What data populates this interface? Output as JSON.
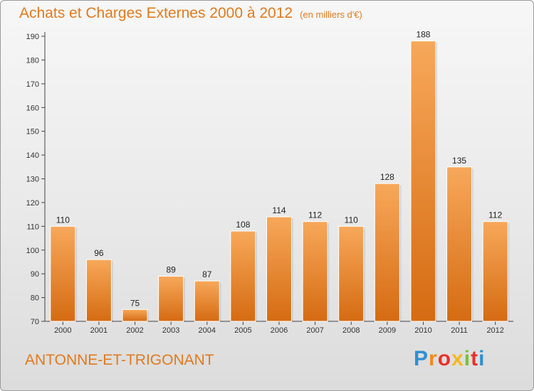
{
  "title": "Achats et Charges Externes 2000 à 2012",
  "subtitle": "(en milliers d'€)",
  "location": "ANTONNE-ET-TRIGONANT",
  "logo": [
    "P",
    "r",
    "o",
    "x",
    "i",
    "t",
    "i"
  ],
  "colors": {
    "bar_top": "#f7a85a",
    "bar_bottom": "#d56b12",
    "accent": "#e07a1e",
    "logo": [
      "#2e8fd3",
      "#f28a1c",
      "#e8312c",
      "#f5b81c",
      "#7bbf3a",
      "#e8312c",
      "#2e8fd3"
    ]
  },
  "chart_data": {
    "type": "bar",
    "categories": [
      "2000",
      "2001",
      "2002",
      "2003",
      "2004",
      "2005",
      "2006",
      "2007",
      "2008",
      "2009",
      "2010",
      "2011",
      "2012"
    ],
    "values": [
      110,
      96,
      75,
      89,
      87,
      108,
      114,
      112,
      110,
      128,
      188,
      135,
      112
    ],
    "title": "Achats et Charges Externes 2000 à 2012",
    "ylim": [
      70,
      190
    ],
    "yticks": [
      70,
      80,
      90,
      100,
      110,
      120,
      130,
      140,
      150,
      160,
      170,
      180,
      190
    ],
    "grid": false
  }
}
